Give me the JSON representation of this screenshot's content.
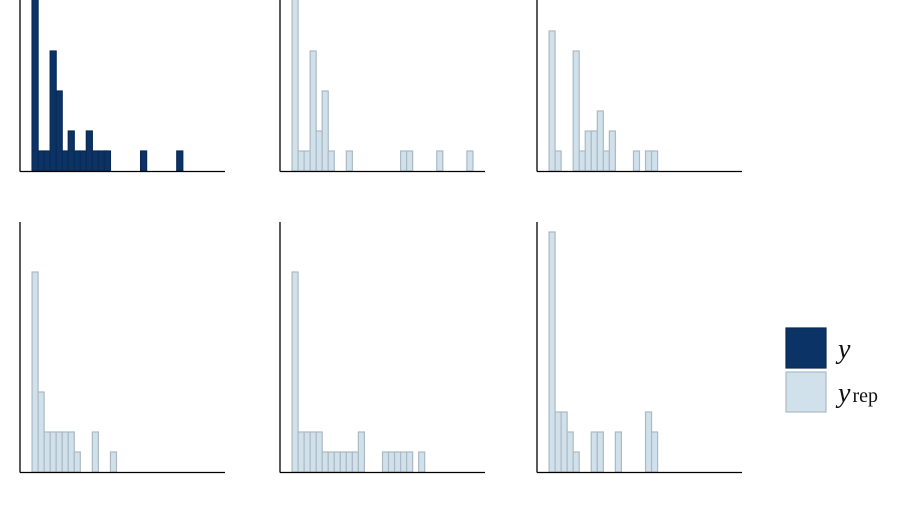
{
  "chart_data": [
    {
      "type": "histogram",
      "bins": [
        0,
        1,
        2,
        3,
        4,
        5,
        6,
        7,
        8,
        9,
        10,
        11,
        12,
        13,
        14,
        15,
        16,
        17,
        18,
        19,
        20,
        21,
        22,
        23,
        24,
        25,
        26,
        27,
        28,
        29,
        30
      ],
      "values": [
        9,
        1,
        1,
        6,
        4,
        1,
        2,
        1,
        1,
        2,
        1,
        1,
        1,
        0,
        0,
        0,
        0,
        0,
        1,
        0,
        0,
        0,
        0,
        0,
        1,
        0,
        0,
        0,
        0,
        0
      ],
      "color": "#0b3366",
      "xlim": [
        -2,
        32
      ],
      "ylim": [
        0,
        12.5
      ]
    },
    {
      "type": "histogram",
      "bins": [
        0,
        1,
        2,
        3,
        4,
        5,
        6,
        7,
        8,
        9,
        10,
        11,
        12,
        13,
        14,
        15,
        16,
        17,
        18,
        19,
        20,
        21,
        22,
        23,
        24,
        25,
        26,
        27,
        28,
        29,
        30
      ],
      "values": [
        9,
        1,
        1,
        6,
        2,
        4,
        1,
        0,
        0,
        1,
        0,
        0,
        0,
        0,
        0,
        0,
        0,
        0,
        1,
        1,
        0,
        0,
        0,
        0,
        1,
        0,
        0,
        0,
        0,
        1
      ],
      "color": "#d1e1ec",
      "xlim": [
        -2,
        32
      ],
      "ylim": [
        0,
        12.5
      ]
    },
    {
      "type": "histogram",
      "bins": [
        0,
        1,
        2,
        3,
        4,
        5,
        6,
        7,
        8,
        9,
        10,
        11,
        12,
        13,
        14,
        15,
        16,
        17,
        18,
        19,
        20,
        21,
        22,
        23,
        24,
        25,
        26,
        27,
        28,
        29,
        30
      ],
      "values": [
        7,
        1,
        0,
        0,
        6,
        1,
        2,
        2,
        3,
        1,
        2,
        0,
        0,
        0,
        1,
        0,
        1,
        1,
        0,
        0,
        0,
        0,
        0,
        0,
        0,
        0,
        0,
        0,
        0,
        0
      ],
      "color": "#d1e1ec",
      "xlim": [
        -2,
        32
      ],
      "ylim": [
        0,
        12.5
      ]
    },
    {
      "type": "histogram",
      "bins": [
        0,
        1,
        2,
        3,
        4,
        5,
        6,
        7,
        8,
        9,
        10,
        11,
        12,
        13,
        14,
        15,
        16,
        17,
        18,
        19,
        20,
        21,
        22,
        23,
        24,
        25,
        26,
        27,
        28,
        29,
        30
      ],
      "values": [
        10,
        4,
        2,
        2,
        2,
        2,
        2,
        1,
        0,
        0,
        2,
        0,
        0,
        1,
        0,
        0,
        0,
        0,
        0,
        0,
        0,
        0,
        0,
        0,
        0,
        0,
        0,
        0,
        0,
        0
      ],
      "color": "#d1e1ec",
      "xlim": [
        -2,
        32
      ],
      "ylim": [
        0,
        12.5
      ]
    },
    {
      "type": "histogram",
      "bins": [
        0,
        1,
        2,
        3,
        4,
        5,
        6,
        7,
        8,
        9,
        10,
        11,
        12,
        13,
        14,
        15,
        16,
        17,
        18,
        19,
        20,
        21,
        22,
        23,
        24,
        25,
        26,
        27,
        28,
        29,
        30
      ],
      "values": [
        10,
        2,
        2,
        2,
        2,
        1,
        1,
        1,
        1,
        1,
        1,
        2,
        0,
        0,
        0,
        1,
        1,
        1,
        1,
        1,
        0,
        1,
        0,
        0,
        0,
        0,
        0,
        0,
        0,
        0
      ],
      "color": "#d1e1ec",
      "xlim": [
        -2,
        32
      ],
      "ylim": [
        0,
        12.5
      ]
    },
    {
      "type": "histogram",
      "bins": [
        0,
        1,
        2,
        3,
        4,
        5,
        6,
        7,
        8,
        9,
        10,
        11,
        12,
        13,
        14,
        15,
        16,
        17,
        18,
        19,
        20,
        21,
        22,
        23,
        24,
        25,
        26,
        27,
        28,
        29,
        30
      ],
      "values": [
        12,
        3,
        3,
        2,
        1,
        0,
        0,
        2,
        2,
        0,
        0,
        2,
        0,
        0,
        0,
        0,
        3,
        2,
        0,
        0,
        0,
        0,
        0,
        0,
        0,
        0,
        0,
        0,
        0,
        0
      ],
      "color": "#d1e1ec",
      "xlim": [
        -2,
        32
      ],
      "ylim": [
        0,
        12.5
      ]
    }
  ],
  "legend": [
    {
      "label": "y",
      "color": "#0b3366"
    },
    {
      "label": "y",
      "subscript": "rep",
      "color": "#d1e1ec"
    }
  ]
}
